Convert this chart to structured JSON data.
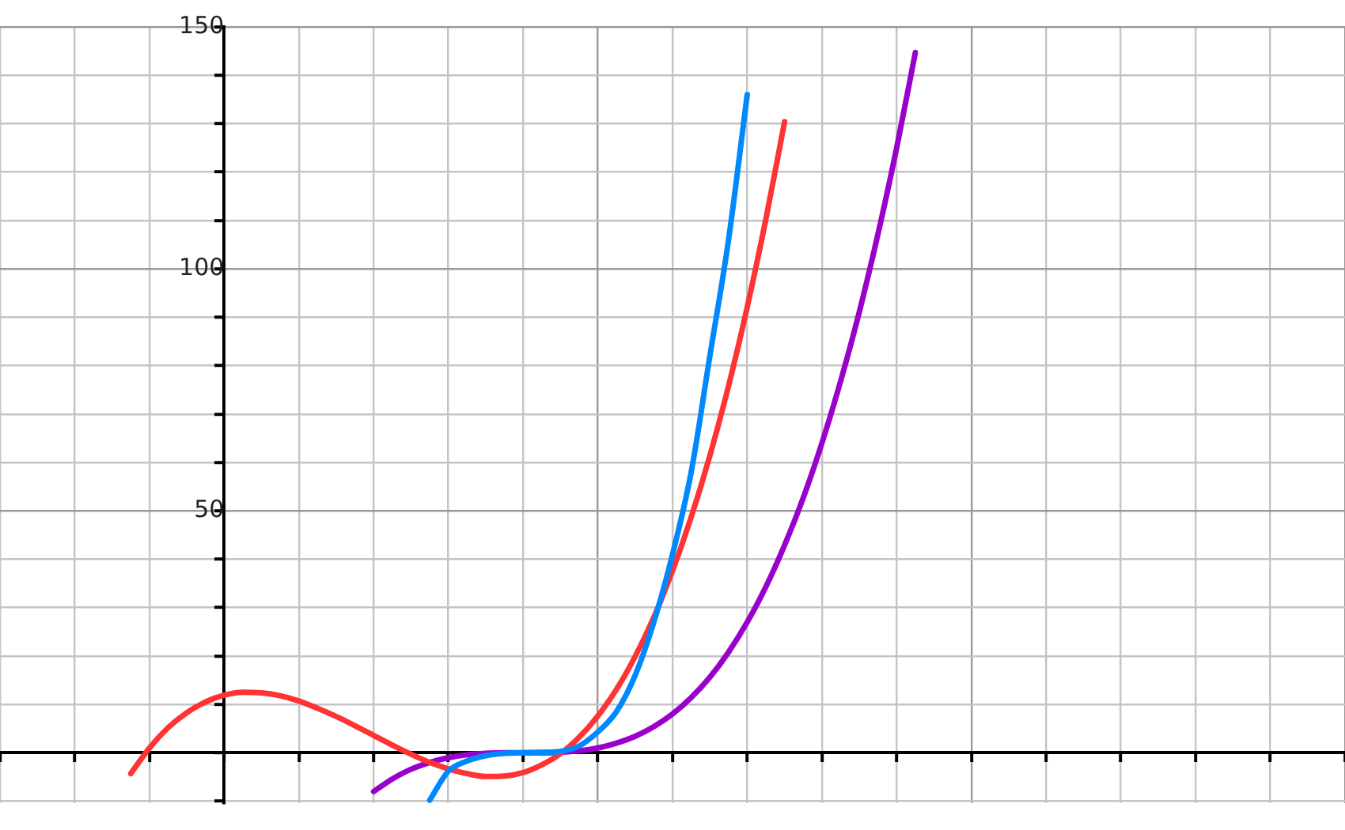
{
  "chart_data": {
    "type": "line",
    "categories": [
      null,
      null,
      null,
      null,
      null,
      null,
      null,
      null,
      null,
      null,
      null,
      null,
      null,
      null,
      null,
      null,
      null,
      null,
      null,
      null,
      null,
      null,
      null,
      null,
      null,
      null,
      null,
      null,
      null,
      null,
      null,
      null,
      null,
      null,
      null,
      null,
      null,
      null,
      null,
      null,
      null,
      null,
      null,
      null,
      null,
      null,
      null,
      null,
      null,
      null,
      null,
      null,
      null,
      null,
      null,
      null,
      null,
      null,
      null,
      null,
      null,
      null,
      null,
      null,
      null,
      null,
      null,
      null,
      null,
      null,
      null,
      null,
      null
    ],
    "series": [
      {
        "color": "#0088ff",
        "values": [
          null,
          null,
          null,
          null,
          null,
          null,
          null,
          null,
          null,
          null,
          null,
          null,
          null,
          null,
          null,
          null,
          null,
          null,
          null,
          null,
          null,
          null,
          null,
          -9.8,
          -3.8,
          -1.7,
          -0.6,
          -0.1,
          0,
          0.1,
          0.3,
          1.4,
          4.3,
          8.5,
          16,
          27,
          41,
          58,
          82,
          106,
          136,
          null,
          null,
          null,
          null,
          null,
          null,
          null,
          null,
          null,
          null,
          null,
          null,
          null,
          null,
          null,
          null,
          null,
          null,
          null,
          null,
          null,
          null,
          null,
          null,
          null,
          null,
          null,
          null,
          null,
          null,
          null,
          null
        ]
      },
      {
        "color": "#ff3333",
        "values": [
          null,
          null,
          null,
          null,
          null,
          null,
          null,
          -4.3,
          1,
          5.2,
          8.3,
          10.5,
          11.9,
          12.5,
          12.4,
          11.8,
          10.7,
          9.2,
          7.5,
          5.6,
          3.6,
          1.6,
          -0.3,
          -2,
          -3.3,
          -4.3,
          -4.9,
          -4.8,
          -4.1,
          -2.5,
          -0.2,
          3.2,
          7.6,
          13.1,
          19.9,
          28,
          37.6,
          48.7,
          61.4,
          75.8,
          92.1,
          110.3,
          130.4,
          null,
          null,
          null,
          null,
          null,
          null,
          null,
          null,
          null,
          null,
          null,
          null,
          null,
          null,
          null,
          null,
          null,
          null,
          null,
          null,
          null,
          null,
          null,
          null,
          null,
          null,
          null,
          null,
          null,
          null
        ]
      },
      {
        "color": "#9900cc",
        "values": [
          null,
          null,
          null,
          null,
          null,
          null,
          null,
          null,
          null,
          null,
          null,
          null,
          null,
          null,
          null,
          null,
          null,
          null,
          null,
          null,
          -8,
          -5.4,
          -3.4,
          -2,
          -1,
          -0.4,
          -0.1,
          0,
          0,
          0,
          0.1,
          0.4,
          1,
          2,
          3.4,
          5.4,
          8,
          11.4,
          15.6,
          20.8,
          27,
          34.3,
          42.9,
          52.7,
          64,
          76.8,
          91.1,
          107.2,
          125,
          144.7,
          null,
          null,
          null,
          null,
          null,
          null,
          null,
          null,
          null,
          null,
          null,
          null,
          null,
          null,
          null,
          null,
          null,
          null,
          null,
          null,
          null,
          null,
          null
        ]
      }
    ],
    "ylim": [
      -10.4,
      150
    ],
    "yticks": [
      {
        "value": -10,
        "label": null
      },
      {
        "value": 0,
        "label": null
      },
      {
        "value": 10,
        "label": null
      },
      {
        "value": 20,
        "label": null
      },
      {
        "value": 30,
        "label": null
      },
      {
        "value": 40,
        "label": null
      },
      50,
      {
        "value": 60,
        "label": null
      },
      {
        "value": 70,
        "label": null
      },
      {
        "value": 80,
        "label": null
      },
      {
        "value": 90,
        "label": null
      },
      100,
      {
        "value": 110,
        "label": null
      },
      {
        "value": 120,
        "label": null
      },
      {
        "value": 130,
        "label": null
      },
      {
        "value": 140,
        "label": null
      },
      150
    ],
    "tick_labels": "y",
    "grid": true,
    "marker": "none",
    "line_style": "solid",
    "legend": false
  }
}
